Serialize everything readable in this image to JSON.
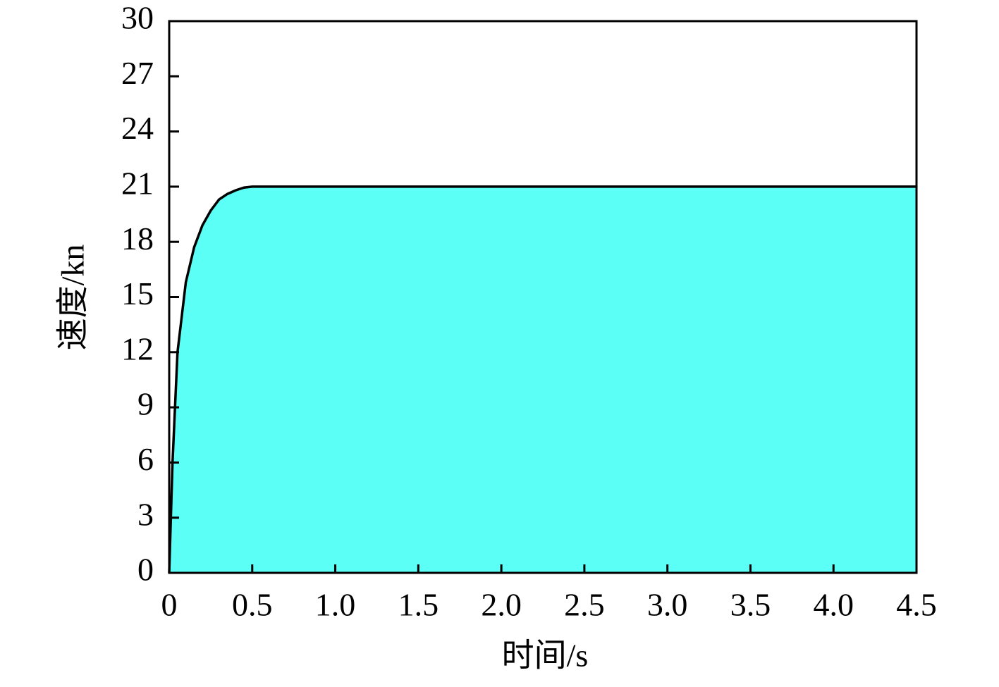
{
  "chart_data": {
    "type": "area",
    "x_label": "时间/s",
    "y_label": "速度/kn",
    "x": [
      0,
      0.02,
      0.05,
      0.1,
      0.15,
      0.2,
      0.25,
      0.3,
      0.35,
      0.4,
      0.45,
      0.5,
      0.55,
      4.5
    ],
    "values": [
      0,
      6,
      12,
      15.8,
      17.7,
      18.9,
      19.7,
      20.3,
      20.6,
      20.8,
      20.95,
      21,
      21,
      21
    ],
    "color": "#5cfff6",
    "line_color": "#000000",
    "xlim": [
      0,
      4.5
    ],
    "xticks": [
      0,
      0.5,
      {
        "value": 1,
        "label": "1.0"
      },
      1.5,
      {
        "value": 2,
        "label": "2.0"
      },
      2.5,
      {
        "value": 3,
        "label": "3.0"
      },
      3.5,
      {
        "value": 4,
        "label": "4.0"
      },
      4.5
    ],
    "ylim": [
      0,
      30
    ],
    "yticks": [
      0,
      3,
      6,
      9,
      12,
      15,
      18,
      21,
      24,
      27,
      30
    ],
    "grid": false
  }
}
